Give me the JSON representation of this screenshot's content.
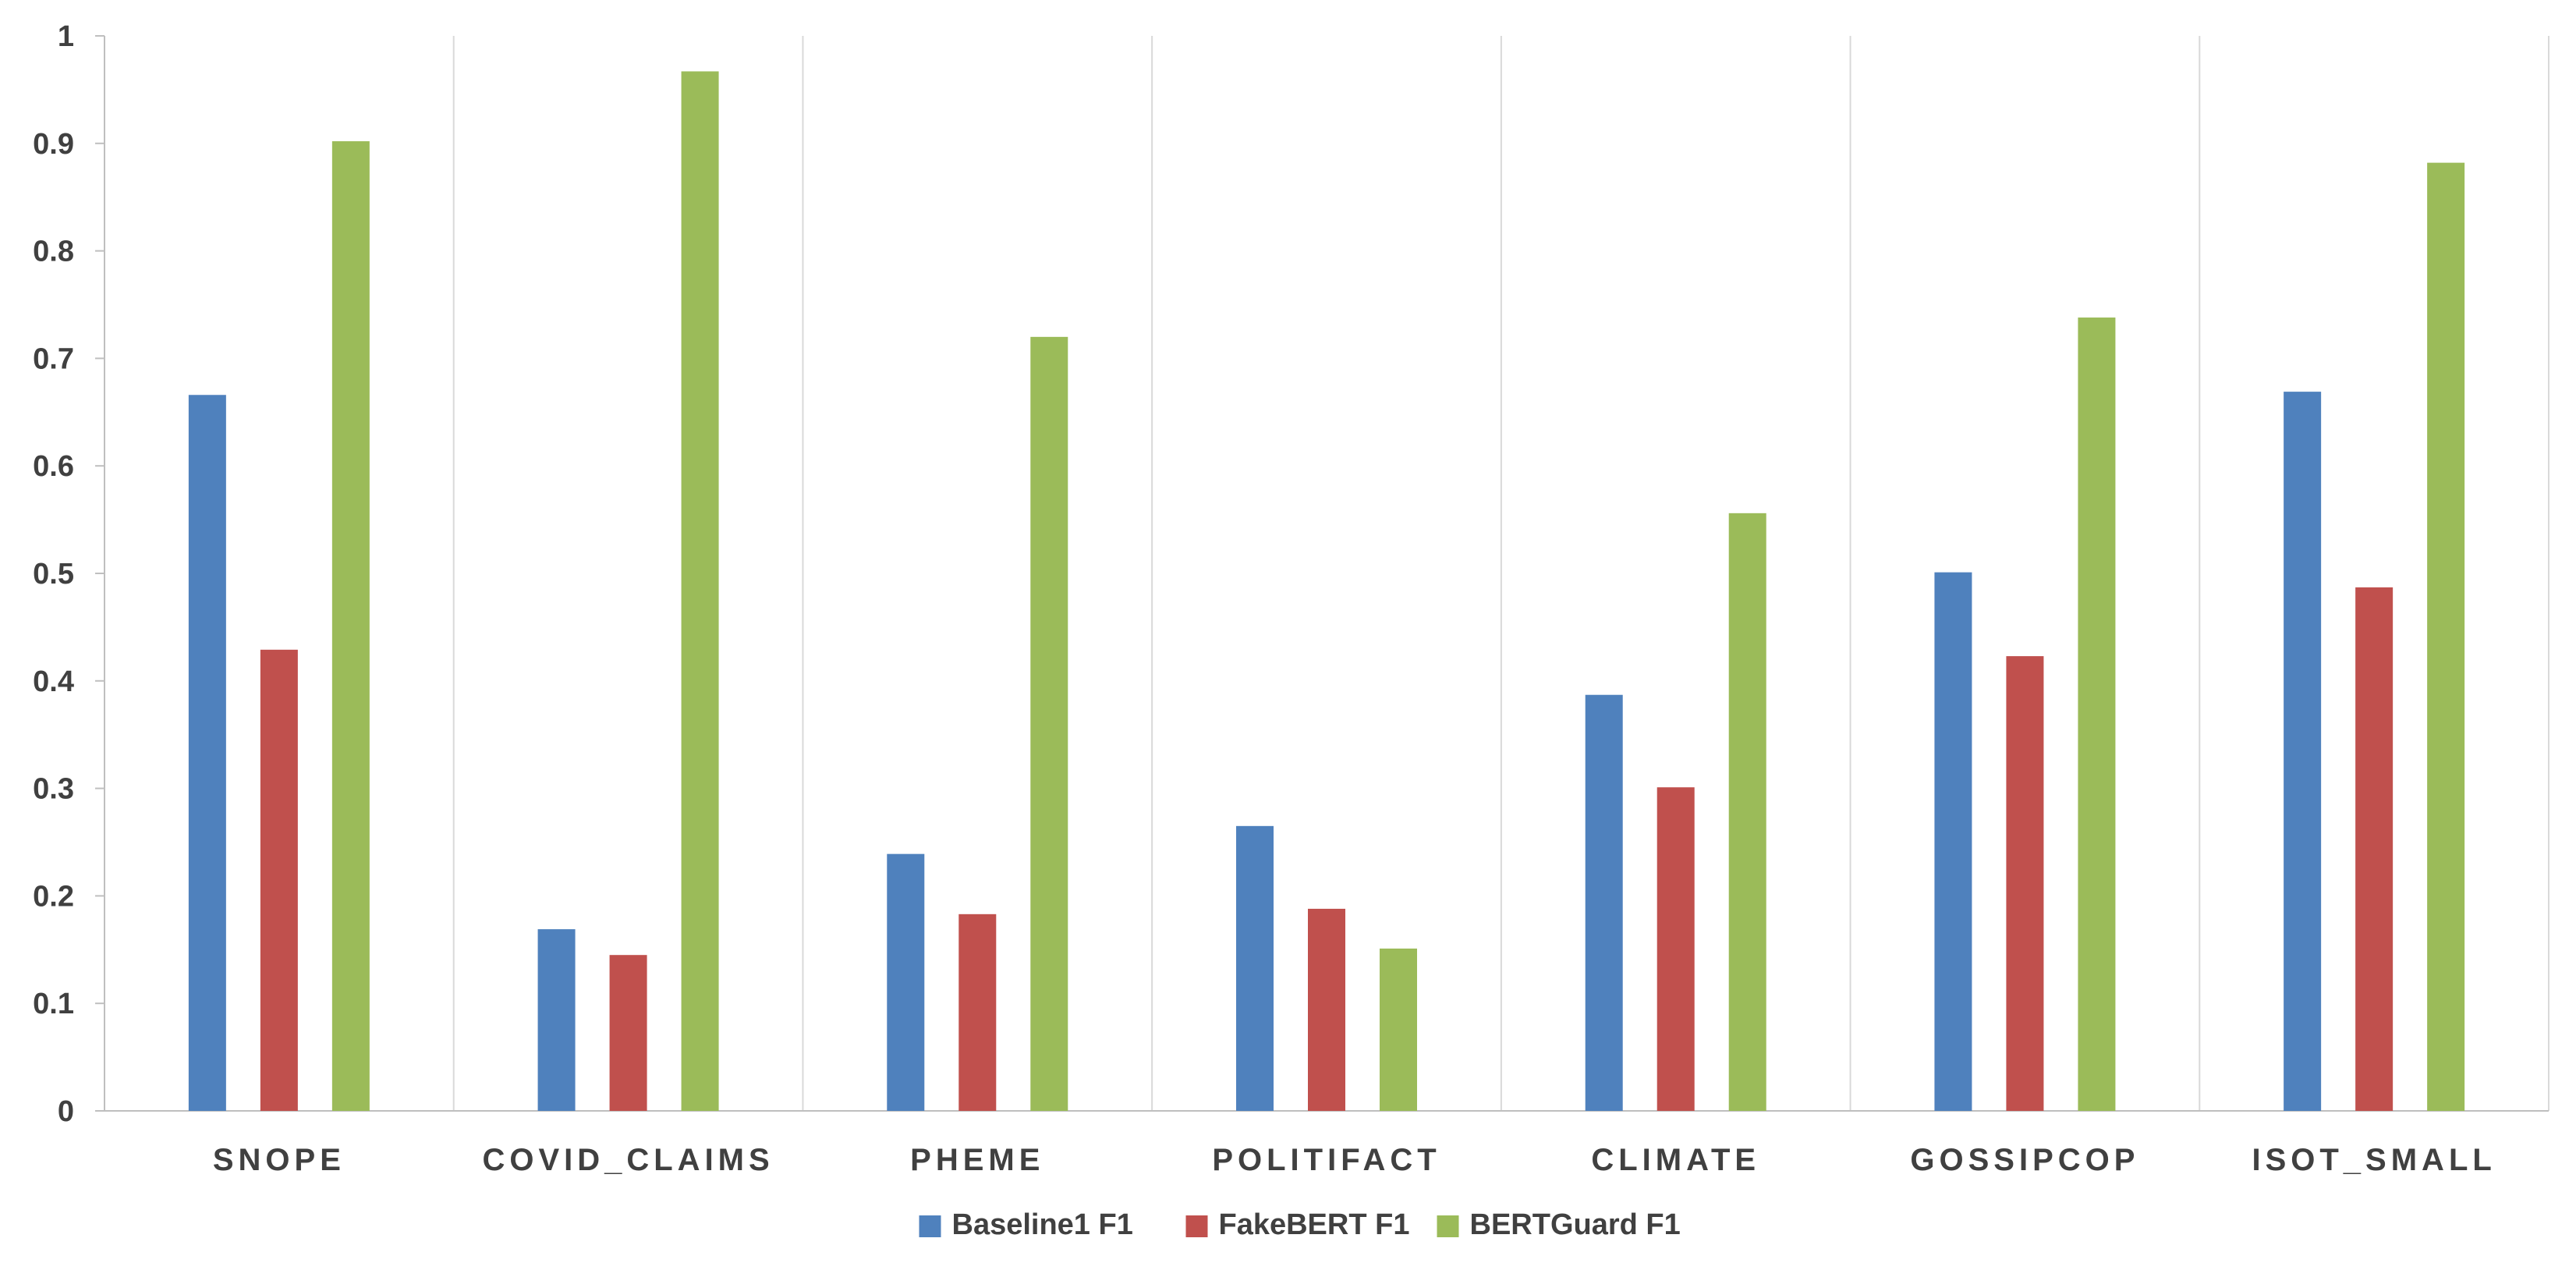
{
  "chart_data": {
    "type": "bar",
    "title": "",
    "xlabel": "",
    "ylabel": "",
    "ylim": [
      0,
      1
    ],
    "y_ticks": [
      "0",
      "0.1",
      "0.2",
      "0.3",
      "0.4",
      "0.5",
      "0.6",
      "0.7",
      "0.8",
      "0.9",
      "1"
    ],
    "categories": [
      "SNOPE",
      "COVID_CLAIMS",
      "PHEME",
      "POLITIFACT",
      "CLIMATE",
      "GOSSIPCOP",
      "ISOT_SMALL"
    ],
    "series": [
      {
        "name": "Baseline1 F1",
        "color": "#4F81BD",
        "values": [
          0.666,
          0.169,
          0.239,
          0.265,
          0.387,
          0.501,
          0.669
        ]
      },
      {
        "name": "FakeBERT F1",
        "color": "#C0504D",
        "values": [
          0.429,
          0.145,
          0.183,
          0.188,
          0.301,
          0.423,
          0.487
        ]
      },
      {
        "name": "BERTGuard F1",
        "color": "#9BBB59",
        "values": [
          0.902,
          0.967,
          0.72,
          0.151,
          0.556,
          0.738,
          0.882
        ]
      }
    ],
    "grid": "vertical category separators",
    "legend_position": "bottom-center"
  }
}
